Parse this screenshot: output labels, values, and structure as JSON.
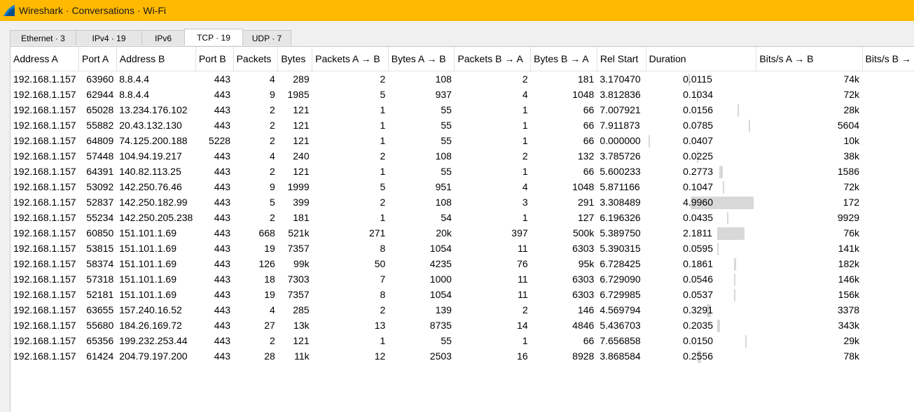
{
  "window": {
    "title": "Wireshark · Conversations · Wi-Fi"
  },
  "tabs": [
    {
      "label": "Ethernet · 3"
    },
    {
      "label": "IPv4 · 19"
    },
    {
      "label": "IPv6"
    },
    {
      "label": "TCP · 19"
    },
    {
      "label": "UDP · 7"
    }
  ],
  "active_tab": "TCP · 19",
  "columns": [
    "Address A",
    "Port A",
    "Address B",
    "Port B",
    "Packets",
    "Bytes",
    "Packets A → B",
    "Bytes A → B",
    "Packets B → A",
    "Bytes B → A",
    "Rel Start",
    "Duration",
    "Bits/s A → B",
    "Bits/s B →"
  ],
  "sorted_column": "Address B",
  "rows": [
    {
      "address_a": "192.168.1.157",
      "port_a": "63960",
      "address_b": "8.8.4.4",
      "port_b": "443",
      "packets": "4",
      "bytes": "289",
      "packets_ab": "2",
      "bytes_ab": "108",
      "packets_ba": "2",
      "bytes_ba": "181",
      "rel_start": "3.170470",
      "duration": "0.0115",
      "bits_ab": "74k",
      "bits_ba": ""
    },
    {
      "address_a": "192.168.1.157",
      "port_a": "62944",
      "address_b": "8.8.4.4",
      "port_b": "443",
      "packets": "9",
      "bytes": "1985",
      "packets_ab": "5",
      "bytes_ab": "937",
      "packets_ba": "4",
      "bytes_ba": "1048",
      "rel_start": "3.812836",
      "duration": "0.1034",
      "bits_ab": "72k",
      "bits_ba": ""
    },
    {
      "address_a": "192.168.1.157",
      "port_a": "65028",
      "address_b": "13.234.176.102",
      "port_b": "443",
      "packets": "2",
      "bytes": "121",
      "packets_ab": "1",
      "bytes_ab": "55",
      "packets_ba": "1",
      "bytes_ba": "66",
      "rel_start": "7.007921",
      "duration": "0.0156",
      "bits_ab": "28k",
      "bits_ba": ""
    },
    {
      "address_a": "192.168.1.157",
      "port_a": "55882",
      "address_b": "20.43.132.130",
      "port_b": "443",
      "packets": "2",
      "bytes": "121",
      "packets_ab": "1",
      "bytes_ab": "55",
      "packets_ba": "1",
      "bytes_ba": "66",
      "rel_start": "7.911873",
      "duration": "0.0785",
      "bits_ab": "5604",
      "bits_ba": ""
    },
    {
      "address_a": "192.168.1.157",
      "port_a": "64809",
      "address_b": "74.125.200.188",
      "port_b": "5228",
      "packets": "2",
      "bytes": "121",
      "packets_ab": "1",
      "bytes_ab": "55",
      "packets_ba": "1",
      "bytes_ba": "66",
      "rel_start": "0.000000",
      "duration": "0.0407",
      "bits_ab": "10k",
      "bits_ba": ""
    },
    {
      "address_a": "192.168.1.157",
      "port_a": "57448",
      "address_b": "104.94.19.217",
      "port_b": "443",
      "packets": "4",
      "bytes": "240",
      "packets_ab": "2",
      "bytes_ab": "108",
      "packets_ba": "2",
      "bytes_ba": "132",
      "rel_start": "3.785726",
      "duration": "0.0225",
      "bits_ab": "38k",
      "bits_ba": ""
    },
    {
      "address_a": "192.168.1.157",
      "port_a": "64391",
      "address_b": "140.82.113.25",
      "port_b": "443",
      "packets": "2",
      "bytes": "121",
      "packets_ab": "1",
      "bytes_ab": "55",
      "packets_ba": "1",
      "bytes_ba": "66",
      "rel_start": "5.600233",
      "duration": "0.2773",
      "bits_ab": "1586",
      "bits_ba": ""
    },
    {
      "address_a": "192.168.1.157",
      "port_a": "53092",
      "address_b": "142.250.76.46",
      "port_b": "443",
      "packets": "9",
      "bytes": "1999",
      "packets_ab": "5",
      "bytes_ab": "951",
      "packets_ba": "4",
      "bytes_ba": "1048",
      "rel_start": "5.871166",
      "duration": "0.1047",
      "bits_ab": "72k",
      "bits_ba": ""
    },
    {
      "address_a": "192.168.1.157",
      "port_a": "52837",
      "address_b": "142.250.182.99",
      "port_b": "443",
      "packets": "5",
      "bytes": "399",
      "packets_ab": "2",
      "bytes_ab": "108",
      "packets_ba": "3",
      "bytes_ba": "291",
      "rel_start": "3.308489",
      "duration": "4.9960",
      "bits_ab": "172",
      "bits_ba": ""
    },
    {
      "address_a": "192.168.1.157",
      "port_a": "55234",
      "address_b": "142.250.205.238",
      "port_b": "443",
      "packets": "2",
      "bytes": "181",
      "packets_ab": "1",
      "bytes_ab": "54",
      "packets_ba": "1",
      "bytes_ba": "127",
      "rel_start": "6.196326",
      "duration": "0.0435",
      "bits_ab": "9929",
      "bits_ba": ""
    },
    {
      "address_a": "192.168.1.157",
      "port_a": "60850",
      "address_b": "151.101.1.69",
      "port_b": "443",
      "packets": "668",
      "bytes": "521k",
      "packets_ab": "271",
      "bytes_ab": "20k",
      "packets_ba": "397",
      "bytes_ba": "500k",
      "rel_start": "5.389750",
      "duration": "2.1811",
      "bits_ab": "76k",
      "bits_ba": ""
    },
    {
      "address_a": "192.168.1.157",
      "port_a": "53815",
      "address_b": "151.101.1.69",
      "port_b": "443",
      "packets": "19",
      "bytes": "7357",
      "packets_ab": "8",
      "bytes_ab": "1054",
      "packets_ba": "11",
      "bytes_ba": "6303",
      "rel_start": "5.390315",
      "duration": "0.0595",
      "bits_ab": "141k",
      "bits_ba": ""
    },
    {
      "address_a": "192.168.1.157",
      "port_a": "58374",
      "address_b": "151.101.1.69",
      "port_b": "443",
      "packets": "126",
      "bytes": "99k",
      "packets_ab": "50",
      "bytes_ab": "4235",
      "packets_ba": "76",
      "bytes_ba": "95k",
      "rel_start": "6.728425",
      "duration": "0.1861",
      "bits_ab": "182k",
      "bits_ba": ""
    },
    {
      "address_a": "192.168.1.157",
      "port_a": "57318",
      "address_b": "151.101.1.69",
      "port_b": "443",
      "packets": "18",
      "bytes": "7303",
      "packets_ab": "7",
      "bytes_ab": "1000",
      "packets_ba": "11",
      "bytes_ba": "6303",
      "rel_start": "6.729090",
      "duration": "0.0546",
      "bits_ab": "146k",
      "bits_ba": ""
    },
    {
      "address_a": "192.168.1.157",
      "port_a": "52181",
      "address_b": "151.101.1.69",
      "port_b": "443",
      "packets": "19",
      "bytes": "7357",
      "packets_ab": "8",
      "bytes_ab": "1054",
      "packets_ba": "11",
      "bytes_ba": "6303",
      "rel_start": "6.729985",
      "duration": "0.0537",
      "bits_ab": "156k",
      "bits_ba": ""
    },
    {
      "address_a": "192.168.1.157",
      "port_a": "63655",
      "address_b": "157.240.16.52",
      "port_b": "443",
      "packets": "4",
      "bytes": "285",
      "packets_ab": "2",
      "bytes_ab": "139",
      "packets_ba": "2",
      "bytes_ba": "146",
      "rel_start": "4.569794",
      "duration": "0.3291",
      "bits_ab": "3378",
      "bits_ba": ""
    },
    {
      "address_a": "192.168.1.157",
      "port_a": "55680",
      "address_b": "184.26.169.72",
      "port_b": "443",
      "packets": "27",
      "bytes": "13k",
      "packets_ab": "13",
      "bytes_ab": "8735",
      "packets_ba": "14",
      "bytes_ba": "4846",
      "rel_start": "5.436703",
      "duration": "0.2035",
      "bits_ab": "343k",
      "bits_ba": ""
    },
    {
      "address_a": "192.168.1.157",
      "port_a": "65356",
      "address_b": "199.232.253.44",
      "port_b": "443",
      "packets": "2",
      "bytes": "121",
      "packets_ab": "1",
      "bytes_ab": "55",
      "packets_ba": "1",
      "bytes_ba": "66",
      "rel_start": "7.656858",
      "duration": "0.0150",
      "bits_ab": "29k",
      "bits_ba": ""
    },
    {
      "address_a": "192.168.1.157",
      "port_a": "61424",
      "address_b": "204.79.197.200",
      "port_b": "443",
      "packets": "28",
      "bytes": "11k",
      "packets_ab": "12",
      "bytes_ab": "2503",
      "packets_ba": "16",
      "bytes_ba": "8928",
      "rel_start": "3.868584",
      "duration": "0.2556",
      "bits_ab": "78k",
      "bits_ba": ""
    }
  ]
}
